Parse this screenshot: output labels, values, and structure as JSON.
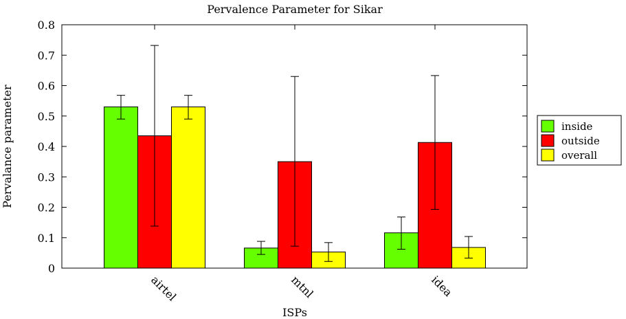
{
  "chart_data": {
    "type": "bar",
    "title": "Pervalence Parameter for Sikar",
    "xlabel": "ISPs",
    "ylabel": "Pervalance parameter",
    "categories": [
      "airtel",
      "mtnl",
      "idea"
    ],
    "ylim": [
      0,
      0.8
    ],
    "yticks": [
      0,
      0.1,
      0.2,
      0.3,
      0.4,
      0.5,
      0.6,
      0.7,
      0.8
    ],
    "ytick_labels": [
      "0",
      "0.1",
      "0.2",
      "0.3",
      "0.4",
      "0.5",
      "0.6",
      "0.7",
      "0.8"
    ],
    "grid": false,
    "legend_position": "right",
    "series": [
      {
        "name": "inside",
        "color": "#66ff00",
        "values": [
          0.53,
          0.066,
          0.116
        ],
        "err_low": [
          0.49,
          0.045,
          0.062
        ],
        "err_high": [
          0.568,
          0.088,
          0.168
        ]
      },
      {
        "name": "outside",
        "color": "#ff0000",
        "values": [
          0.435,
          0.35,
          0.413
        ],
        "err_low": [
          0.138,
          0.072,
          0.193
        ],
        "err_high": [
          0.732,
          0.63,
          0.633
        ]
      },
      {
        "name": "overall",
        "color": "#ffff00",
        "values": [
          0.53,
          0.053,
          0.068
        ],
        "err_low": [
          0.49,
          0.022,
          0.033
        ],
        "err_high": [
          0.568,
          0.084,
          0.104
        ]
      }
    ]
  }
}
